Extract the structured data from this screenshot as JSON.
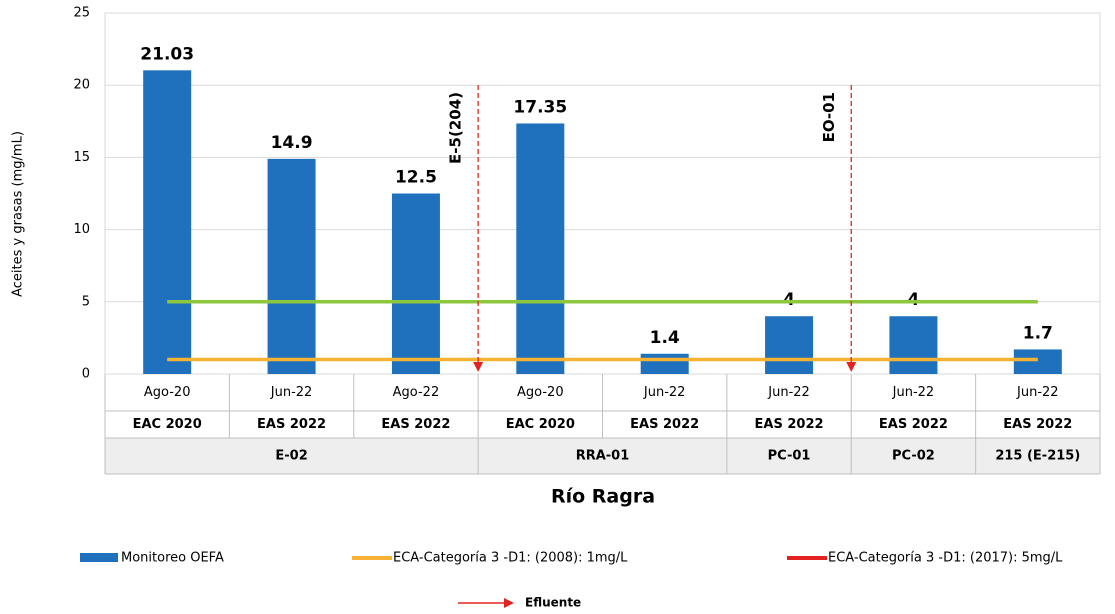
{
  "chart_data": {
    "type": "bar",
    "ylabel": "Aceites y grasas (mg/mL)",
    "xlabel": "Río Ragra",
    "categories": [
      "Ago-20",
      "Jun-22",
      "Ago-22",
      "Ago-20",
      "Jun-22",
      "Jun-22",
      "Jun-22",
      "Jun-22"
    ],
    "campaigns": [
      "EAC 2020",
      "EAS 2022",
      "EAS 2022",
      "EAC 2020",
      "EAS 2022",
      "EAS 2022",
      "EAS 2022",
      "EAS 2022"
    ],
    "groups": [
      {
        "label": "E-02",
        "count": 3
      },
      {
        "label": "RRA-01",
        "count": 2
      },
      {
        "label": "PC-01",
        "count": 1
      },
      {
        "label": "PC-02",
        "count": 1
      },
      {
        "label": "215 (E-215)",
        "count": 1
      }
    ],
    "series": [
      {
        "name": "Monitoreo OEFA",
        "kind": "bar",
        "color": "#1f70bd",
        "values": [
          21.03,
          14.9,
          12.5,
          17.35,
          1.4,
          4,
          4,
          1.7
        ]
      },
      {
        "name": "ECA-Categoría 3 -D1: (2008): 1mg/L",
        "kind": "line",
        "color": "#f6b232",
        "values": [
          1,
          1,
          1,
          1,
          1,
          1,
          1,
          1
        ]
      },
      {
        "name": "ECA-Categoría 3 -D1: (2017): 5mg/L",
        "kind": "line",
        "color": "#8dc63f",
        "legend_color": "#e3231f",
        "values": [
          5,
          5,
          5,
          5,
          5,
          5,
          5,
          5
        ]
      }
    ],
    "annotations": [
      {
        "text": "E-5(204)"
      },
      {
        "text": "EO-01"
      }
    ],
    "effluent_legend": "Efluente",
    "effluent_color": "#e3231f",
    "ylim": [
      0,
      25
    ],
    "yticks": [
      0,
      5,
      10,
      15,
      20,
      25
    ],
    "grid": true
  }
}
